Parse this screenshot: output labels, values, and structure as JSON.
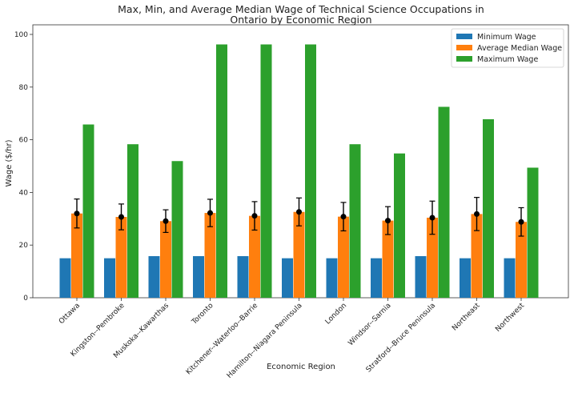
{
  "chart_data": {
    "type": "bar",
    "title": "Max, Min, and Average Median Wage of Technical Science Occupations in Ontario by Economic Region",
    "title_lines": [
      "Max, Min, and Average Median Wage of Technical Science Occupations in",
      "Ontario by Economic Region"
    ],
    "xlabel": "Economic Region",
    "ylabel": "Wage ($/hr)",
    "ylim": [
      0,
      100
    ],
    "yticks": [
      0,
      20,
      40,
      60,
      80,
      100
    ],
    "grid": false,
    "legend_position": "top-right",
    "categories": [
      "Ottawa",
      "Kingston--Pembroke",
      "Muskoka--Kawarthas",
      "Toronto",
      "Kitchener--Waterloo--Barrie",
      "Hamilton--Niagara Peninsula",
      "London",
      "Windsor--Sarnia",
      "Stratford--Bruce Peninsula",
      "Northeast",
      "Northwest"
    ],
    "series": [
      {
        "name": "Minimum Wage",
        "color": "#1f77b4",
        "values": [
          15.0,
          15.0,
          15.8,
          15.8,
          15.8,
          15.0,
          15.0,
          15.0,
          15.8,
          15.0,
          15.0
        ]
      },
      {
        "name": "Average Median Wage",
        "color": "#ff7f0e",
        "values": [
          32.0,
          30.7,
          29.1,
          32.2,
          31.1,
          32.6,
          30.8,
          29.3,
          30.4,
          31.8,
          28.8
        ]
      },
      {
        "name": "Maximum Wage",
        "color": "#2ca02c",
        "values": [
          65.8,
          58.3,
          51.9,
          96.2,
          96.2,
          96.2,
          58.3,
          54.8,
          72.5,
          67.8,
          49.4
        ]
      }
    ],
    "error_bars": {
      "series": "Average Median Wage",
      "lower": [
        26.5,
        25.8,
        24.8,
        27.0,
        25.7,
        27.3,
        25.4,
        24.0,
        24.1,
        25.5,
        23.4
      ],
      "upper": [
        37.5,
        35.6,
        33.4,
        37.4,
        36.5,
        37.9,
        36.2,
        34.6,
        36.7,
        38.1,
        34.2
      ]
    }
  }
}
